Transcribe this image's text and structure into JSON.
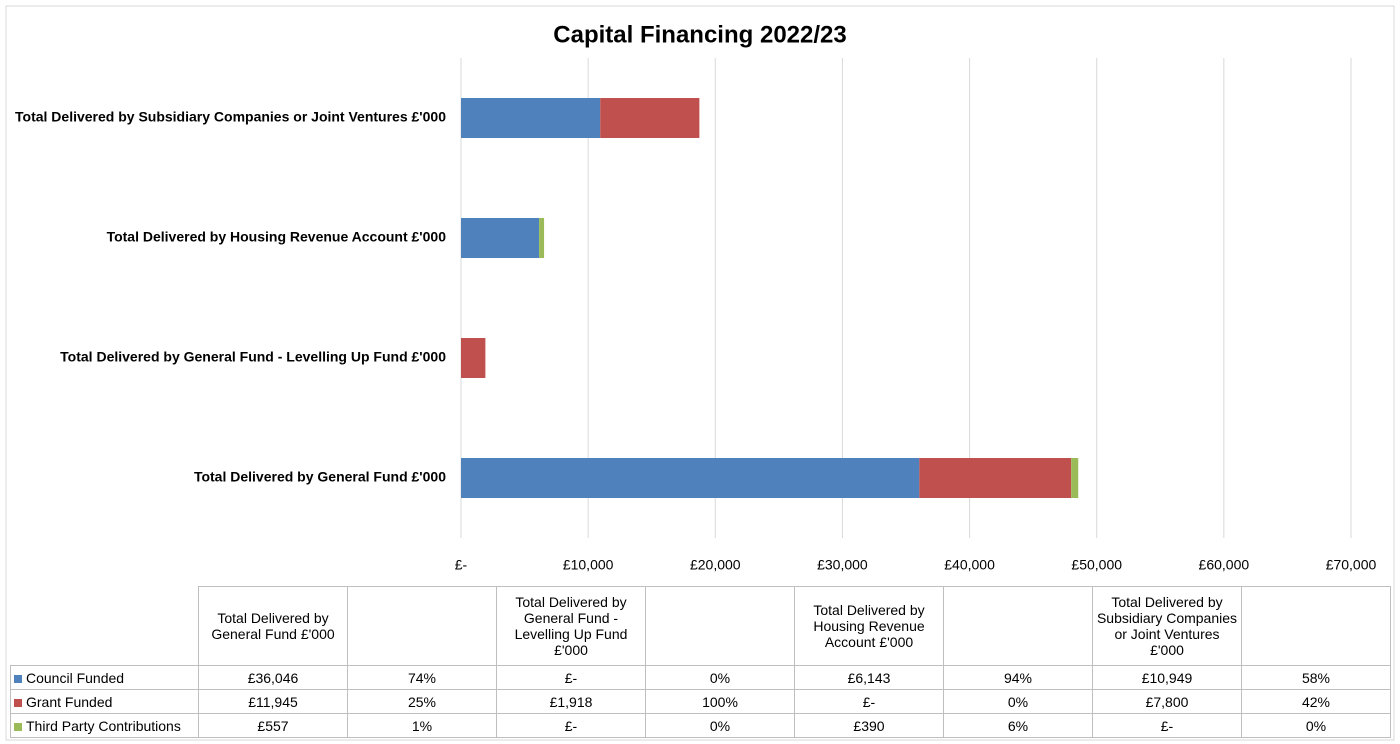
{
  "chart_data": {
    "type": "stacked_hbar",
    "title": "Capital Financing 2022/23",
    "categories": [
      "Total Delivered by General Fund £'000",
      "Total Delivered by General Fund - Levelling Up Fund £'000",
      "Total Delivered by Housing Revenue Account £'000",
      "Total Delivered by Subsidiary Companies or Joint Ventures £'000"
    ],
    "series": [
      {
        "name": "Council Funded",
        "color": "#4f81bd",
        "values": [
          36046,
          0,
          6143,
          10949
        ],
        "value_labels": [
          "£36,046",
          "£-",
          "£6,143",
          "£10,949"
        ],
        "share_labels": [
          "74%",
          "0%",
          "94%",
          "58%"
        ]
      },
      {
        "name": "Grant Funded",
        "color": "#c0504d",
        "values": [
          11945,
          1918,
          0,
          7800
        ],
        "value_labels": [
          "£11,945",
          "£1,918",
          "£-",
          "£7,800"
        ],
        "share_labels": [
          "25%",
          "100%",
          "0%",
          "42%"
        ]
      },
      {
        "name": "Third Party Contributions",
        "color": "#9bbb59",
        "values": [
          557,
          0,
          390,
          0
        ],
        "value_labels": [
          "£557",
          "£-",
          "£390",
          "£-"
        ],
        "share_labels": [
          "1%",
          "0%",
          "6%",
          "0%"
        ]
      }
    ],
    "xlim": [
      0,
      70000
    ],
    "xticks": [
      {
        "value": 0,
        "label": "£-"
      },
      {
        "value": 10000,
        "label": "£10,000"
      },
      {
        "value": 20000,
        "label": "£20,000"
      },
      {
        "value": 30000,
        "label": "£30,000"
      },
      {
        "value": 40000,
        "label": "£40,000"
      },
      {
        "value": 50000,
        "label": "£50,000"
      },
      {
        "value": 60000,
        "label": "£60,000"
      },
      {
        "value": 70000,
        "label": "£70,000"
      }
    ],
    "grid": true
  }
}
